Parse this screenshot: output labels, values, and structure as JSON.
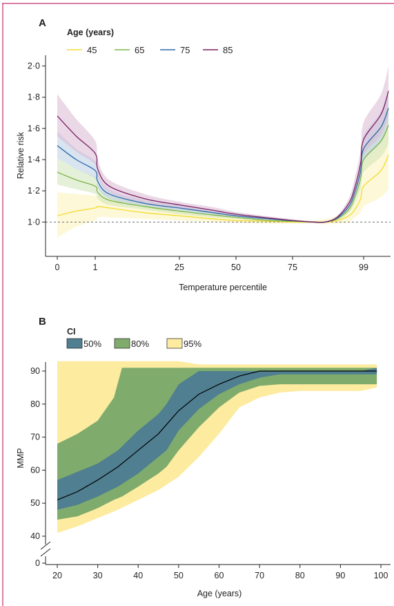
{
  "colors": {
    "frame": "#c0306a",
    "axis": "#231f20",
    "age45": "#f2dc30",
    "age65": "#7cb648",
    "age75": "#2d6aa8",
    "age85": "#7b1f62",
    "band45": "#fbf3b8",
    "band65": "#cfe4b8",
    "band75": "#b9cde6",
    "band85": "#d8b8d4",
    "ci50": "#4f7f90",
    "ci80": "#7fac6c",
    "ci95": "#fdeba0",
    "mmp_line": "#000000"
  },
  "chart_data": [
    {
      "panel": "A",
      "type": "line",
      "legend_title": "Age (years)",
      "legend_placement": "top-left",
      "xlabel": "Temperature percentile",
      "ylabel": "Relative risk",
      "x_ticks": [
        "0",
        "1",
        "25",
        "50",
        "75",
        "99"
      ],
      "y_ticks": [
        "1·0",
        "1·2",
        "1·4",
        "1·6",
        "1·8",
        "2·0"
      ],
      "ylim": [
        0.78,
        2.06
      ],
      "reference_line": 1.0,
      "x_axis_note": "non-linear percentile axis",
      "series": [
        {
          "name": "45",
          "x": [
            0,
            0.5,
            1,
            1.7,
            5,
            15,
            25,
            40,
            50,
            65,
            75,
            82,
            86,
            90,
            94,
            96,
            98,
            99,
            99.7,
            100
          ],
          "y": [
            1.04,
            1.07,
            1.09,
            1.1,
            1.09,
            1.06,
            1.04,
            1.02,
            1.01,
            1.005,
            1.0,
            1.0,
            1.0,
            1.01,
            1.04,
            1.08,
            1.15,
            1.23,
            1.33,
            1.43
          ],
          "lower": [
            0.9,
            0.97,
            1.01,
            1.03,
            1.03,
            1.02,
            1.01,
            1.0,
            0.995,
            0.99,
            0.99,
            0.99,
            0.985,
            0.99,
            1.0,
            1.03,
            1.06,
            1.1,
            1.16,
            1.21
          ],
          "upper": [
            1.19,
            1.18,
            1.17,
            1.17,
            1.15,
            1.11,
            1.07,
            1.04,
            1.03,
            1.02,
            1.01,
            1.01,
            1.02,
            1.04,
            1.09,
            1.16,
            1.26,
            1.38,
            1.52,
            1.68
          ]
        },
        {
          "name": "65",
          "x": [
            0,
            0.5,
            1,
            1.7,
            5,
            15,
            25,
            40,
            50,
            65,
            75,
            82,
            86,
            90,
            94,
            96,
            98,
            99,
            99.7,
            100
          ],
          "y": [
            1.32,
            1.27,
            1.23,
            1.19,
            1.14,
            1.1,
            1.07,
            1.045,
            1.03,
            1.01,
            1.005,
            1.0,
            1.0,
            1.02,
            1.08,
            1.16,
            1.28,
            1.4,
            1.52,
            1.62
          ],
          "lower": [
            1.24,
            1.21,
            1.18,
            1.15,
            1.11,
            1.08,
            1.05,
            1.03,
            1.02,
            1.0,
            0.995,
            0.995,
            0.995,
            1.01,
            1.06,
            1.12,
            1.22,
            1.32,
            1.42,
            1.5
          ],
          "upper": [
            1.41,
            1.34,
            1.29,
            1.24,
            1.18,
            1.13,
            1.09,
            1.06,
            1.045,
            1.02,
            1.012,
            1.005,
            1.005,
            1.03,
            1.1,
            1.2,
            1.34,
            1.48,
            1.62,
            1.74
          ]
        },
        {
          "name": "75",
          "x": [
            0,
            0.5,
            1,
            1.7,
            5,
            15,
            25,
            40,
            50,
            65,
            75,
            82,
            86,
            90,
            94,
            96,
            98,
            99,
            99.7,
            100
          ],
          "y": [
            1.49,
            1.4,
            1.33,
            1.26,
            1.18,
            1.12,
            1.09,
            1.06,
            1.04,
            1.02,
            1.008,
            1.0,
            1.0,
            1.025,
            1.1,
            1.19,
            1.33,
            1.47,
            1.61,
            1.73
          ],
          "lower": [
            1.41,
            1.34,
            1.28,
            1.22,
            1.15,
            1.1,
            1.07,
            1.045,
            1.03,
            1.01,
            1.0,
            0.995,
            0.995,
            1.015,
            1.08,
            1.15,
            1.27,
            1.39,
            1.51,
            1.61
          ],
          "upper": [
            1.58,
            1.47,
            1.39,
            1.31,
            1.21,
            1.14,
            1.11,
            1.075,
            1.055,
            1.03,
            1.016,
            1.005,
            1.005,
            1.035,
            1.12,
            1.23,
            1.39,
            1.55,
            1.71,
            1.85
          ]
        },
        {
          "name": "85",
          "x": [
            0,
            0.5,
            1,
            1.7,
            5,
            15,
            25,
            40,
            50,
            65,
            75,
            82,
            86,
            90,
            94,
            96,
            98,
            99,
            99.7,
            100
          ],
          "y": [
            1.68,
            1.55,
            1.44,
            1.34,
            1.23,
            1.15,
            1.11,
            1.075,
            1.05,
            1.025,
            1.01,
            1.0,
            1.0,
            1.03,
            1.12,
            1.22,
            1.38,
            1.53,
            1.69,
            1.84
          ],
          "lower": [
            1.55,
            1.45,
            1.37,
            1.29,
            1.19,
            1.12,
            1.09,
            1.055,
            1.035,
            1.015,
            1.003,
            0.995,
            0.995,
            1.02,
            1.09,
            1.17,
            1.3,
            1.43,
            1.56,
            1.68
          ],
          "upper": [
            1.82,
            1.66,
            1.52,
            1.4,
            1.27,
            1.18,
            1.13,
            1.095,
            1.065,
            1.035,
            1.018,
            1.005,
            1.005,
            1.04,
            1.15,
            1.28,
            1.46,
            1.64,
            1.82,
            2.0
          ]
        }
      ]
    },
    {
      "panel": "B",
      "type": "area",
      "legend_title": "CI",
      "legend_placement": "top-left",
      "legend": [
        "50%",
        "80%",
        "95%"
      ],
      "xlabel": "Age (years)",
      "ylabel": "MMP",
      "x_ticks": [
        "20",
        "30",
        "40",
        "50",
        "60",
        "70",
        "80",
        "90",
        "100"
      ],
      "y_ticks": [
        "0",
        "40",
        "50",
        "60",
        "70",
        "80",
        "90"
      ],
      "xlim": [
        20,
        100
      ],
      "y_axis_break": true,
      "series": [
        {
          "name": "MMP",
          "x": [
            20,
            25,
            30,
            35,
            40,
            45,
            50,
            55,
            60,
            65,
            70,
            75,
            80,
            85,
            90,
            95,
            99
          ],
          "y": [
            51,
            53.5,
            57,
            61,
            66,
            71,
            78,
            83,
            86,
            88.5,
            90,
            90,
            90,
            90,
            90,
            90,
            90
          ]
        },
        {
          "name": "50%",
          "x": [
            20,
            25,
            30,
            35,
            40,
            45,
            47,
            50,
            55,
            60,
            65,
            70,
            75,
            80,
            85,
            90,
            95,
            99
          ],
          "lower": [
            48,
            49.5,
            52,
            55,
            59,
            64,
            66,
            72,
            78.5,
            83,
            86,
            88,
            89,
            89,
            89,
            89,
            89,
            89
          ],
          "upper": [
            57,
            59.5,
            62,
            66,
            72,
            77,
            80,
            86,
            90,
            90,
            90,
            90,
            90,
            90,
            90,
            90,
            90,
            91
          ]
        },
        {
          "name": "80%",
          "x": [
            20,
            25,
            30,
            34,
            36,
            40,
            45,
            47,
            50,
            55,
            60,
            65,
            70,
            75,
            80,
            85,
            90,
            95,
            99
          ],
          "lower": [
            45,
            46,
            48.5,
            51,
            52,
            55,
            59,
            61,
            66,
            73,
            79,
            83.5,
            85.5,
            86,
            86,
            86,
            86,
            86,
            86
          ],
          "upper": [
            68,
            71,
            75,
            82,
            91,
            91,
            91,
            91,
            91,
            91,
            91,
            91,
            91,
            91,
            91,
            91,
            91,
            91,
            91
          ]
        },
        {
          "name": "95%",
          "x": [
            20,
            25,
            30,
            35,
            40,
            45,
            50,
            55,
            60,
            65,
            70,
            75,
            80,
            85,
            90,
            95,
            99
          ],
          "lower": [
            41,
            43,
            45.5,
            48,
            51,
            54,
            58,
            64,
            71,
            79,
            82,
            83.5,
            84,
            84,
            84,
            84,
            85
          ],
          "upper": [
            93,
            93,
            93,
            93,
            93,
            93,
            93,
            92,
            92,
            92,
            92,
            92,
            92,
            92,
            92,
            92,
            92
          ]
        }
      ]
    }
  ]
}
